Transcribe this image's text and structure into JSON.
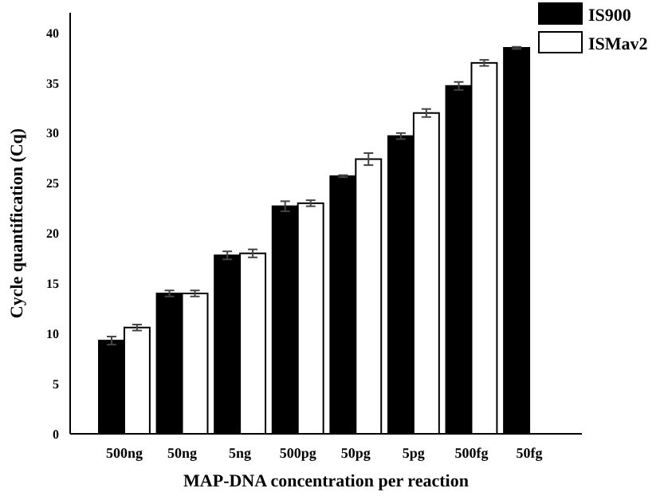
{
  "chart_data": {
    "type": "bar",
    "xlabel": "MAP-DNA concentration per reaction",
    "ylabel": "Cycle quantification (Cq)",
    "categories": [
      "500ng",
      "50ng",
      "5ng",
      "500pg",
      "50pg",
      "5pg",
      "500fg",
      "50fg"
    ],
    "ylim": [
      0,
      42
    ],
    "yticks": [
      0,
      5,
      10,
      15,
      20,
      25,
      30,
      35,
      40
    ],
    "grid": false,
    "legend": "top right",
    "series": [
      {
        "name": "IS900",
        "color": "#000000",
        "values": [
          9.3,
          14.0,
          17.8,
          22.7,
          25.7,
          29.7,
          34.7,
          38.5
        ],
        "errors": [
          0.4,
          0.3,
          0.4,
          0.5,
          0.1,
          0.3,
          0.4,
          0.1
        ]
      },
      {
        "name": "ISMav2",
        "color": "#ffffff",
        "values": [
          10.6,
          14.0,
          18.0,
          23.0,
          27.4,
          32.0,
          37.0,
          null
        ],
        "errors": [
          0.3,
          0.3,
          0.4,
          0.3,
          0.6,
          0.4,
          0.3,
          null
        ]
      }
    ]
  }
}
